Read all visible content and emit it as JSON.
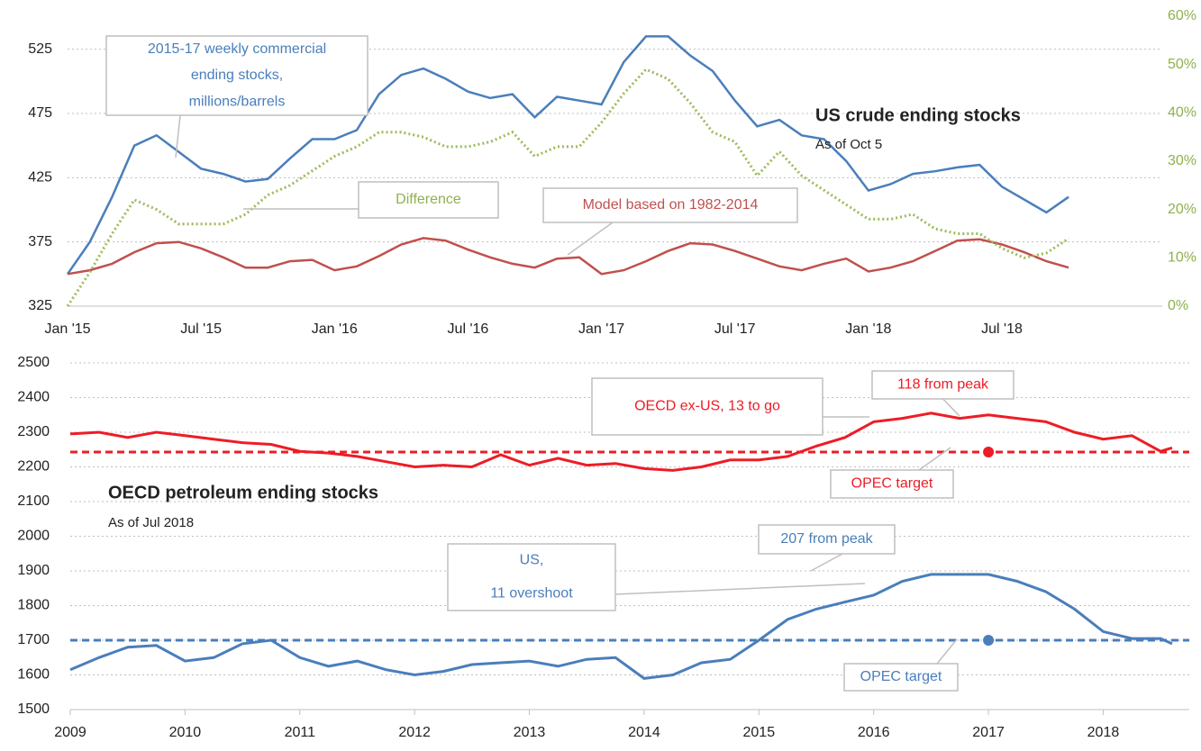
{
  "chart_data": [
    {
      "type": "line",
      "title": "US crude ending stocks",
      "subtitle": "As of Oct 5",
      "categories": [
        "Jan '15",
        null,
        null,
        null,
        null,
        null,
        "Jul '15",
        null,
        null,
        null,
        null,
        null,
        "Jan '16",
        null,
        null,
        null,
        null,
        null,
        "Jul '16",
        null,
        null,
        null,
        null,
        null,
        "Jan '17",
        null,
        null,
        null,
        null,
        null,
        "Jul '17",
        null,
        null,
        null,
        null,
        null,
        "Jan '18",
        null,
        null,
        null,
        null,
        null,
        "Jul '18",
        null,
        null,
        null
      ],
      "series": [
        {
          "color": "#4a7ebb",
          "values": [
            350,
            375,
            410,
            450,
            458,
            445,
            432,
            428,
            422,
            424,
            440,
            455,
            455,
            462,
            490,
            505,
            510,
            502,
            492,
            487,
            490,
            472,
            488,
            485,
            482,
            515,
            535,
            535,
            520,
            508,
            485,
            465,
            470,
            458,
            455,
            438,
            415,
            420,
            428,
            430,
            433,
            435,
            418,
            408,
            398,
            410
          ]
        },
        {
          "color": "#c0504d",
          "values": [
            350,
            353,
            358,
            367,
            374,
            375,
            370,
            363,
            355,
            355,
            360,
            361,
            353,
            356,
            364,
            373,
            378,
            376,
            369,
            363,
            358,
            355,
            362,
            363,
            350,
            353,
            360,
            368,
            374,
            373,
            368,
            362,
            356,
            353,
            358,
            362,
            352,
            355,
            360,
            368,
            376,
            377,
            373,
            367,
            360,
            355
          ]
        },
        {
          "color": "#9bbb59",
          "axis": "y2",
          "dotted": true,
          "values": [
            0,
            7,
            15,
            22,
            20,
            17,
            17,
            17,
            19,
            23,
            25,
            28,
            31,
            33,
            36,
            36,
            35,
            33,
            33,
            34,
            36,
            31,
            33,
            33,
            38,
            44,
            49,
            47,
            42,
            36,
            34,
            27,
            32,
            27,
            24,
            21,
            18,
            18,
            19,
            16,
            15,
            15,
            12,
            10,
            11,
            14
          ]
        }
      ],
      "ylim": [
        325,
        550
      ],
      "yticks": [
        325,
        375,
        425,
        475,
        525
      ],
      "y2lim": [
        0,
        60
      ],
      "y2ticks": [
        {
          "value": 0,
          "label": "0%"
        },
        {
          "value": 10,
          "label": "10%"
        },
        {
          "value": 20,
          "label": "20%"
        },
        {
          "value": 30,
          "label": "30%"
        },
        {
          "value": 40,
          "label": "40%"
        },
        {
          "value": 50,
          "label": "50%"
        },
        {
          "value": 60,
          "label": "60%"
        }
      ],
      "grid": true,
      "annotations": [
        {
          "lines": [
            "2015-17 weekly commercial",
            "ending stocks,",
            "millions/barrels"
          ],
          "color": "#4a7ebb"
        },
        {
          "lines": [
            "Difference"
          ],
          "color": "#8fb04e"
        },
        {
          "lines": [
            "Model based on 1982-2014"
          ],
          "color": "#c0504d"
        }
      ]
    },
    {
      "type": "line",
      "title": "OECD petroleum ending stocks",
      "subtitle": "As of Jul 2018",
      "x": [
        2009,
        2009.25,
        2009.5,
        2009.75,
        2010,
        2010.25,
        2010.5,
        2010.75,
        2011,
        2011.25,
        2011.5,
        2011.75,
        2012,
        2012.25,
        2012.5,
        2012.75,
        2013,
        2013.25,
        2013.5,
        2013.75,
        2014,
        2014.25,
        2014.5,
        2014.75,
        2015,
        2015.25,
        2015.5,
        2015.75,
        2016,
        2016.25,
        2016.5,
        2016.75,
        2017,
        2017.25,
        2017.5,
        2017.75,
        2018,
        2018.25,
        2018.5,
        2018.6
      ],
      "series": [
        {
          "color": "#ee1c25",
          "values": [
            2295,
            2300,
            2285,
            2300,
            2290,
            2280,
            2270,
            2265,
            2245,
            2240,
            2230,
            2215,
            2200,
            2205,
            2200,
            2235,
            2205,
            2225,
            2205,
            2210,
            2195,
            2190,
            2200,
            2220,
            2220,
            2230,
            2260,
            2285,
            2330,
            2340,
            2355,
            2340,
            2350,
            2340,
            2330,
            2300,
            2280,
            2290,
            2245,
            2255
          ]
        },
        {
          "color": "#4a7ebb",
          "values": [
            1615,
            1650,
            1680,
            1685,
            1640,
            1650,
            1690,
            1700,
            1650,
            1625,
            1640,
            1615,
            1600,
            1610,
            1630,
            1635,
            1640,
            1625,
            1645,
            1650,
            1590,
            1600,
            1635,
            1645,
            1700,
            1760,
            1790,
            1810,
            1830,
            1870,
            1890,
            1890,
            1890,
            1870,
            1840,
            1790,
            1725,
            1705,
            1705,
            1690
          ]
        }
      ],
      "targets": [
        {
          "value": 2243,
          "x": 2017,
          "color": "#ee1c25"
        },
        {
          "value": 1700,
          "x": 2017,
          "color": "#4a7ebb"
        }
      ],
      "xlim": [
        2009,
        2018.75
      ],
      "xticks": [
        2009,
        2010,
        2011,
        2012,
        2013,
        2014,
        2015,
        2016,
        2017,
        2018
      ],
      "ylim": [
        1500,
        2500
      ],
      "yticks": [
        1500,
        1600,
        1700,
        1800,
        1900,
        2000,
        2100,
        2200,
        2300,
        2400,
        2500
      ],
      "grid": true,
      "annotations": [
        {
          "lines": [
            "OECD ex-US, 13 to go"
          ],
          "color": "#ee1c25"
        },
        {
          "lines": [
            "118 from peak"
          ],
          "color": "#ee1c25"
        },
        {
          "lines": [
            "OPEC target"
          ],
          "color": "#ee1c25"
        },
        {
          "lines": [
            "US,",
            "11 overshoot"
          ],
          "color": "#4a7ebb"
        },
        {
          "lines": [
            "207 from peak"
          ],
          "color": "#4a7ebb"
        },
        {
          "lines": [
            "OPEC target"
          ],
          "color": "#4a7ebb"
        }
      ]
    }
  ]
}
